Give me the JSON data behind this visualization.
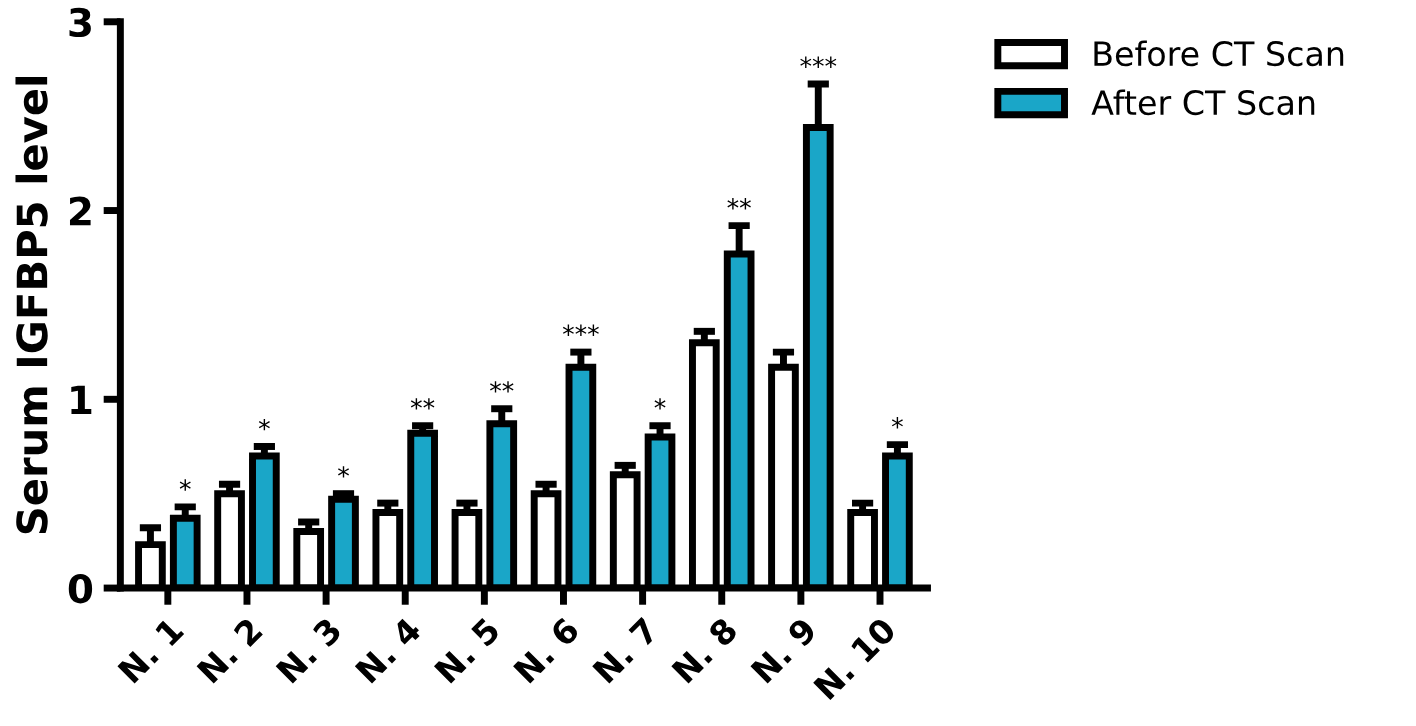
{
  "chart_data": {
    "type": "bar",
    "ylabel": "Serum IGFBP5 level",
    "categories": [
      "N. 1",
      "N. 2",
      "N. 3",
      "N. 4",
      "N. 5",
      "N. 6",
      "N. 7",
      "N. 8",
      "N. 9",
      "N. 10"
    ],
    "series": [
      {
        "name": "Before CT Scan",
        "color": "#ffffff",
        "values": [
          0.23,
          0.5,
          0.3,
          0.4,
          0.4,
          0.5,
          0.6,
          1.3,
          1.17,
          0.4
        ],
        "errors": [
          0.09,
          0.05,
          0.05,
          0.05,
          0.05,
          0.05,
          0.05,
          0.06,
          0.08,
          0.05
        ]
      },
      {
        "name": "After CT Scan",
        "color": "#1aa6c8",
        "values": [
          0.37,
          0.7,
          0.47,
          0.82,
          0.87,
          1.17,
          0.8,
          1.77,
          2.44,
          0.7
        ],
        "errors": [
          0.06,
          0.05,
          0.03,
          0.04,
          0.08,
          0.08,
          0.06,
          0.15,
          0.23,
          0.06
        ]
      }
    ],
    "annotations": [
      "*",
      "*",
      "*",
      "**",
      "**",
      "***",
      "*",
      "**",
      "***",
      "*"
    ],
    "ylim": [
      0,
      3
    ],
    "yticks": [
      0,
      1,
      2,
      3
    ],
    "grid": false,
    "legend": "top right"
  }
}
